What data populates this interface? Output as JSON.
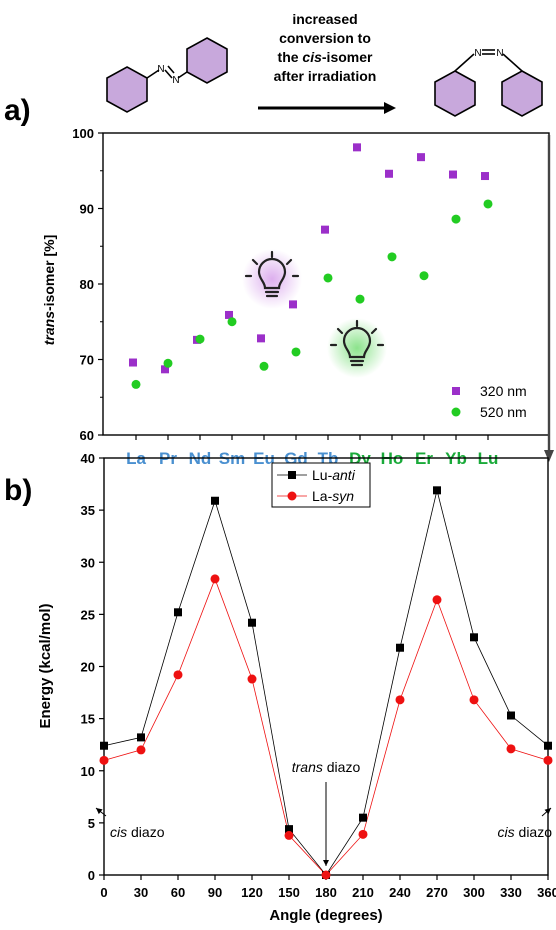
{
  "colors": {
    "purple": "#9b2fc9",
    "green": "#22cc22",
    "lan_blue": "#4a90d0",
    "lan_green": "#1aaa3a",
    "ring_fill": "#c8a8dc",
    "black": "#000000",
    "red": "#ee1111"
  },
  "scheme": {
    "arrow_text": [
      "increased",
      "conversion to",
      "the cis-isomer",
      "after irradiation"
    ],
    "arrow_text_italic_word": "cis",
    "azo_label": "N",
    "panel_a_label": "a)",
    "panel_b_label": "b)"
  },
  "icons": [
    "lightbulb-icon-purple",
    "lightbulb-icon-green"
  ],
  "chart_data": [
    {
      "type": "scatter",
      "ylabel": "trans-isomer [%]",
      "ylabel_italic_part": "trans",
      "ylim": [
        60,
        100
      ],
      "yticks": [
        60,
        70,
        80,
        90,
        100
      ],
      "categories": [
        "La",
        "Pr",
        "Nd",
        "Sm",
        "Eu",
        "Gd",
        "Tb",
        "Dy",
        "Ho",
        "Er",
        "Yb",
        "Lu"
      ],
      "category_colors": [
        "blue",
        "blue",
        "blue",
        "blue",
        "blue",
        "blue",
        "blue",
        "green",
        "green",
        "green",
        "green",
        "green"
      ],
      "legend_position": "bottom-right",
      "series": [
        {
          "name": "320 nm",
          "marker": "square",
          "color": "purple",
          "values": [
            69.6,
            68.7,
            72.6,
            75.9,
            72.8,
            77.3,
            87.2,
            98.1,
            94.6,
            96.8,
            94.5,
            94.3
          ]
        },
        {
          "name": "520 nm",
          "marker": "circle",
          "color": "green",
          "values": [
            66.7,
            69.5,
            72.7,
            75.0,
            69.1,
            71.0,
            80.8,
            78.0,
            83.6,
            81.1,
            88.6,
            90.6
          ]
        }
      ]
    },
    {
      "type": "line",
      "xlabel": "Angle (degrees)",
      "ylabel": "Energy (kcal/mol)",
      "xlim": [
        0,
        360
      ],
      "ylim": [
        0,
        40
      ],
      "xticks": [
        0,
        30,
        60,
        90,
        120,
        150,
        180,
        210,
        240,
        270,
        300,
        330,
        360
      ],
      "yticks": [
        0,
        5,
        10,
        15,
        20,
        25,
        30,
        35,
        40
      ],
      "legend_position": "top-center",
      "x": [
        0,
        30,
        60,
        90,
        120,
        150,
        180,
        210,
        240,
        270,
        300,
        330,
        360
      ],
      "series": [
        {
          "name": "Lu-anti",
          "prefix": "Lu-",
          "italic": "anti",
          "marker": "square",
          "color": "black",
          "values": [
            12.4,
            13.2,
            25.2,
            35.9,
            24.2,
            4.4,
            0.0,
            5.5,
            21.8,
            36.9,
            22.8,
            15.3,
            12.4
          ]
        },
        {
          "name": "La-syn",
          "prefix": "La-",
          "italic": "syn",
          "marker": "circle",
          "color": "red",
          "values": [
            11.0,
            12.0,
            19.2,
            28.4,
            18.8,
            3.8,
            0.0,
            3.9,
            16.8,
            26.4,
            16.8,
            12.1,
            11.0
          ]
        }
      ],
      "annotations": [
        {
          "italic": "cis",
          "text": " diazo",
          "x": 0,
          "y": 11.0
        },
        {
          "italic": "trans",
          "text": " diazo",
          "x": 180,
          "y": 0.0
        },
        {
          "italic": "cis",
          "text": " diazo",
          "x": 360,
          "y": 11.0
        }
      ]
    }
  ]
}
